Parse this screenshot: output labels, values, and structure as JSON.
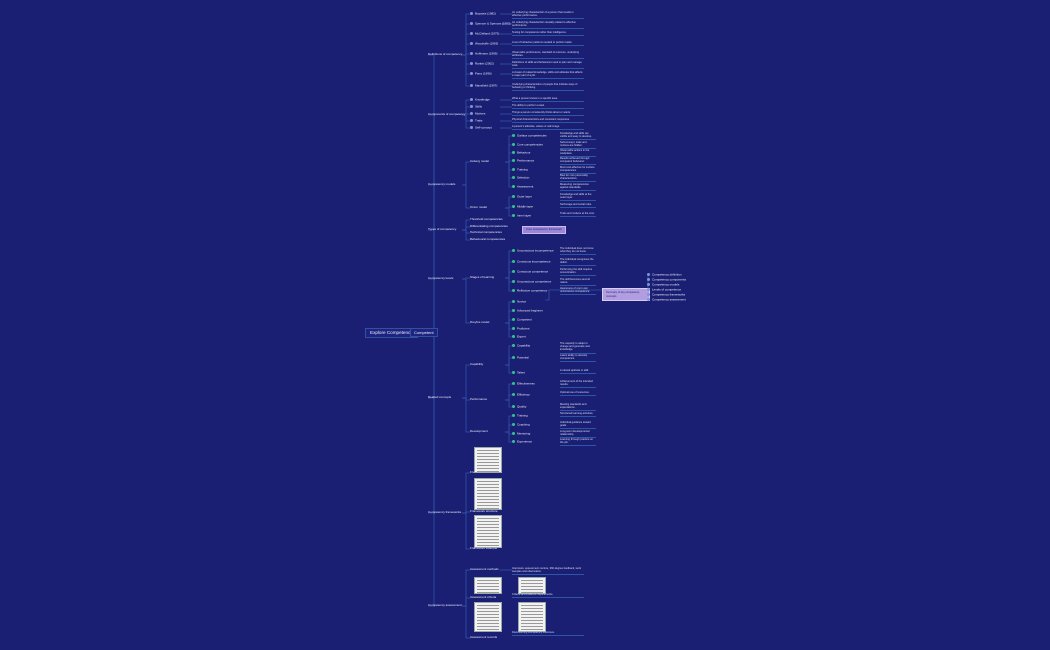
{
  "root": {
    "label": "Explore Competency"
  },
  "center": {
    "label": "Competent"
  },
  "colors": {
    "background": "#1b1f73",
    "line": "#2f55a8",
    "highlight": "#9b86d6"
  },
  "branches": [
    {
      "label": "Definitions of competency",
      "children": [
        {
          "label": "Boyatzis (1982)",
          "note": "An underlying characteristic of a person that results in effective performance."
        },
        {
          "label": "Spencer & Spencer (1993)",
          "note": "An underlying characteristic causally related to effective performance."
        },
        {
          "label": "McClelland (1973)",
          "note": "Testing for competence rather than intelligence."
        },
        {
          "label": "Woodruffe (1993)",
          "note": "A set of behaviour patterns needed to perform tasks."
        },
        {
          "label": "Hoffmann (1999)",
          "note": "Observable performance, standard of outcome, underlying attributes."
        },
        {
          "label": "Rankin (2002)",
          "note": "Definitions of skills and behaviours used to plan and manage work."
        },
        {
          "label": "Parry (1996)",
          "note": "A cluster of related knowledge, skills and attitudes that affects a major part of a job."
        },
        {
          "label": "Mansfield (1997)",
          "note": "Underlying characteristics of people that indicate ways of behaving or thinking."
        }
      ]
    },
    {
      "label": "Components of competency",
      "children": [
        {
          "label": "Knowledge",
          "note": "What a person knows in a specific area."
        },
        {
          "label": "Skills",
          "note": "The ability to perform a task."
        },
        {
          "label": "Motives",
          "note": "Things a person consistently thinks about or wants."
        },
        {
          "label": "Traits",
          "note": "Physical characteristics and consistent responses."
        },
        {
          "label": "Self-concept",
          "note": "A person's attitudes, values or self-image."
        }
      ]
    },
    {
      "label": "Competency models",
      "children": [
        {
          "label": "Iceberg model",
          "subs": [
            {
              "label": "Surface competencies",
              "note": "Knowledge and skills are visible and easy to develop."
            },
            {
              "label": "Core competencies",
              "note": "Self-concept, traits and motives are hidden."
            },
            {
              "label": "Behaviour",
              "note": "Observable actions in the workplace."
            },
            {
              "label": "Performance",
              "note": "Results achieved through competent behaviour."
            },
            {
              "label": "Training",
              "note": "Most cost-effective for surface competencies."
            },
            {
              "label": "Selection",
              "note": "Best for core personality characteristics."
            },
            {
              "label": "Assessment",
              "note": "Measuring competencies against standards."
            }
          ]
        },
        {
          "label": "Onion model",
          "subs": [
            {
              "label": "Outer layer",
              "note": "Knowledge and skills at the outer layer."
            },
            {
              "label": "Middle layer",
              "note": "Self-image and social roles."
            },
            {
              "label": "Inner layer",
              "note": "Traits and motives at the core."
            }
          ]
        }
      ]
    },
    {
      "label": "Types of competency",
      "children": [
        {
          "label": "Threshold competencies"
        },
        {
          "label": "Differentiating competencies"
        },
        {
          "label": "Technical competencies"
        },
        {
          "label": "Behavioural competencies"
        }
      ],
      "highlight": "Core competency framework"
    },
    {
      "label": "Competency levels",
      "children": [
        {
          "label": "Stages of learning",
          "subs": [
            {
              "label": "Unconscious incompetence",
              "note": "The individual does not know what they do not know."
            },
            {
              "label": "Conscious incompetence",
              "note": "The individual recognises the deficit."
            },
            {
              "label": "Conscious competence",
              "note": "Performing the skill requires concentration."
            },
            {
              "label": "Unconscious competence",
              "note": "The skill becomes second nature."
            },
            {
              "label": "Reflective competence",
              "note": "Awareness of one's own unconscious competence."
            }
          ]
        },
        {
          "label": "Dreyfus model",
          "subs": [
            {
              "label": "Novice"
            },
            {
              "label": "Advanced beginner"
            },
            {
              "label": "Competent"
            },
            {
              "label": "Proficient"
            },
            {
              "label": "Expert"
            }
          ]
        }
      ]
    },
    {
      "label": "Related concepts",
      "children": [
        {
          "label": "Capability",
          "subs": [
            {
              "label": "Capability",
              "note": "The capacity to adapt to change and generate new knowledge."
            },
            {
              "label": "Potential",
              "note": "Latent ability to develop competence."
            },
            {
              "label": "Talent",
              "note": "A natural aptitude or skill."
            }
          ]
        },
        {
          "label": "Performance",
          "subs": [
            {
              "label": "Effectiveness",
              "note": "Achievement of the intended results."
            },
            {
              "label": "Efficiency",
              "note": "Optimal use of resources."
            },
            {
              "label": "Quality",
              "note": "Meeting standards and expectations."
            }
          ]
        },
        {
          "label": "Development",
          "subs": [
            {
              "label": "Training",
              "note": "Structured learning activities."
            },
            {
              "label": "Coaching",
              "note": "Individual guidance toward goals."
            },
            {
              "label": "Mentoring",
              "note": "Long-term developmental relationship."
            },
            {
              "label": "Experience",
              "note": "Learning through practice on the job."
            }
          ]
        }
      ]
    },
    {
      "label": "Competency frameworks",
      "children": [
        {
          "label": "Framework overview"
        },
        {
          "label": "Framework structure"
        },
        {
          "label": "Framework example"
        }
      ]
    },
    {
      "label": "Competency assessment",
      "children": [
        {
          "label": "Assessment methods",
          "note": "Interviews, assessment centres, 360-degree feedback, work samples and observation."
        },
        {
          "label": "Assessment criteria",
          "note": "Criteria and evidence requirements."
        },
        {
          "label": "Assessment records",
          "note": "Documenting competency outcomes."
        }
      ]
    }
  ],
  "side": {
    "label": "Summary of key competency concepts",
    "items": [
      "Competency definition",
      "Competency components",
      "Competency models",
      "Levels of competence",
      "Competency frameworks",
      "Competency assessment"
    ]
  }
}
